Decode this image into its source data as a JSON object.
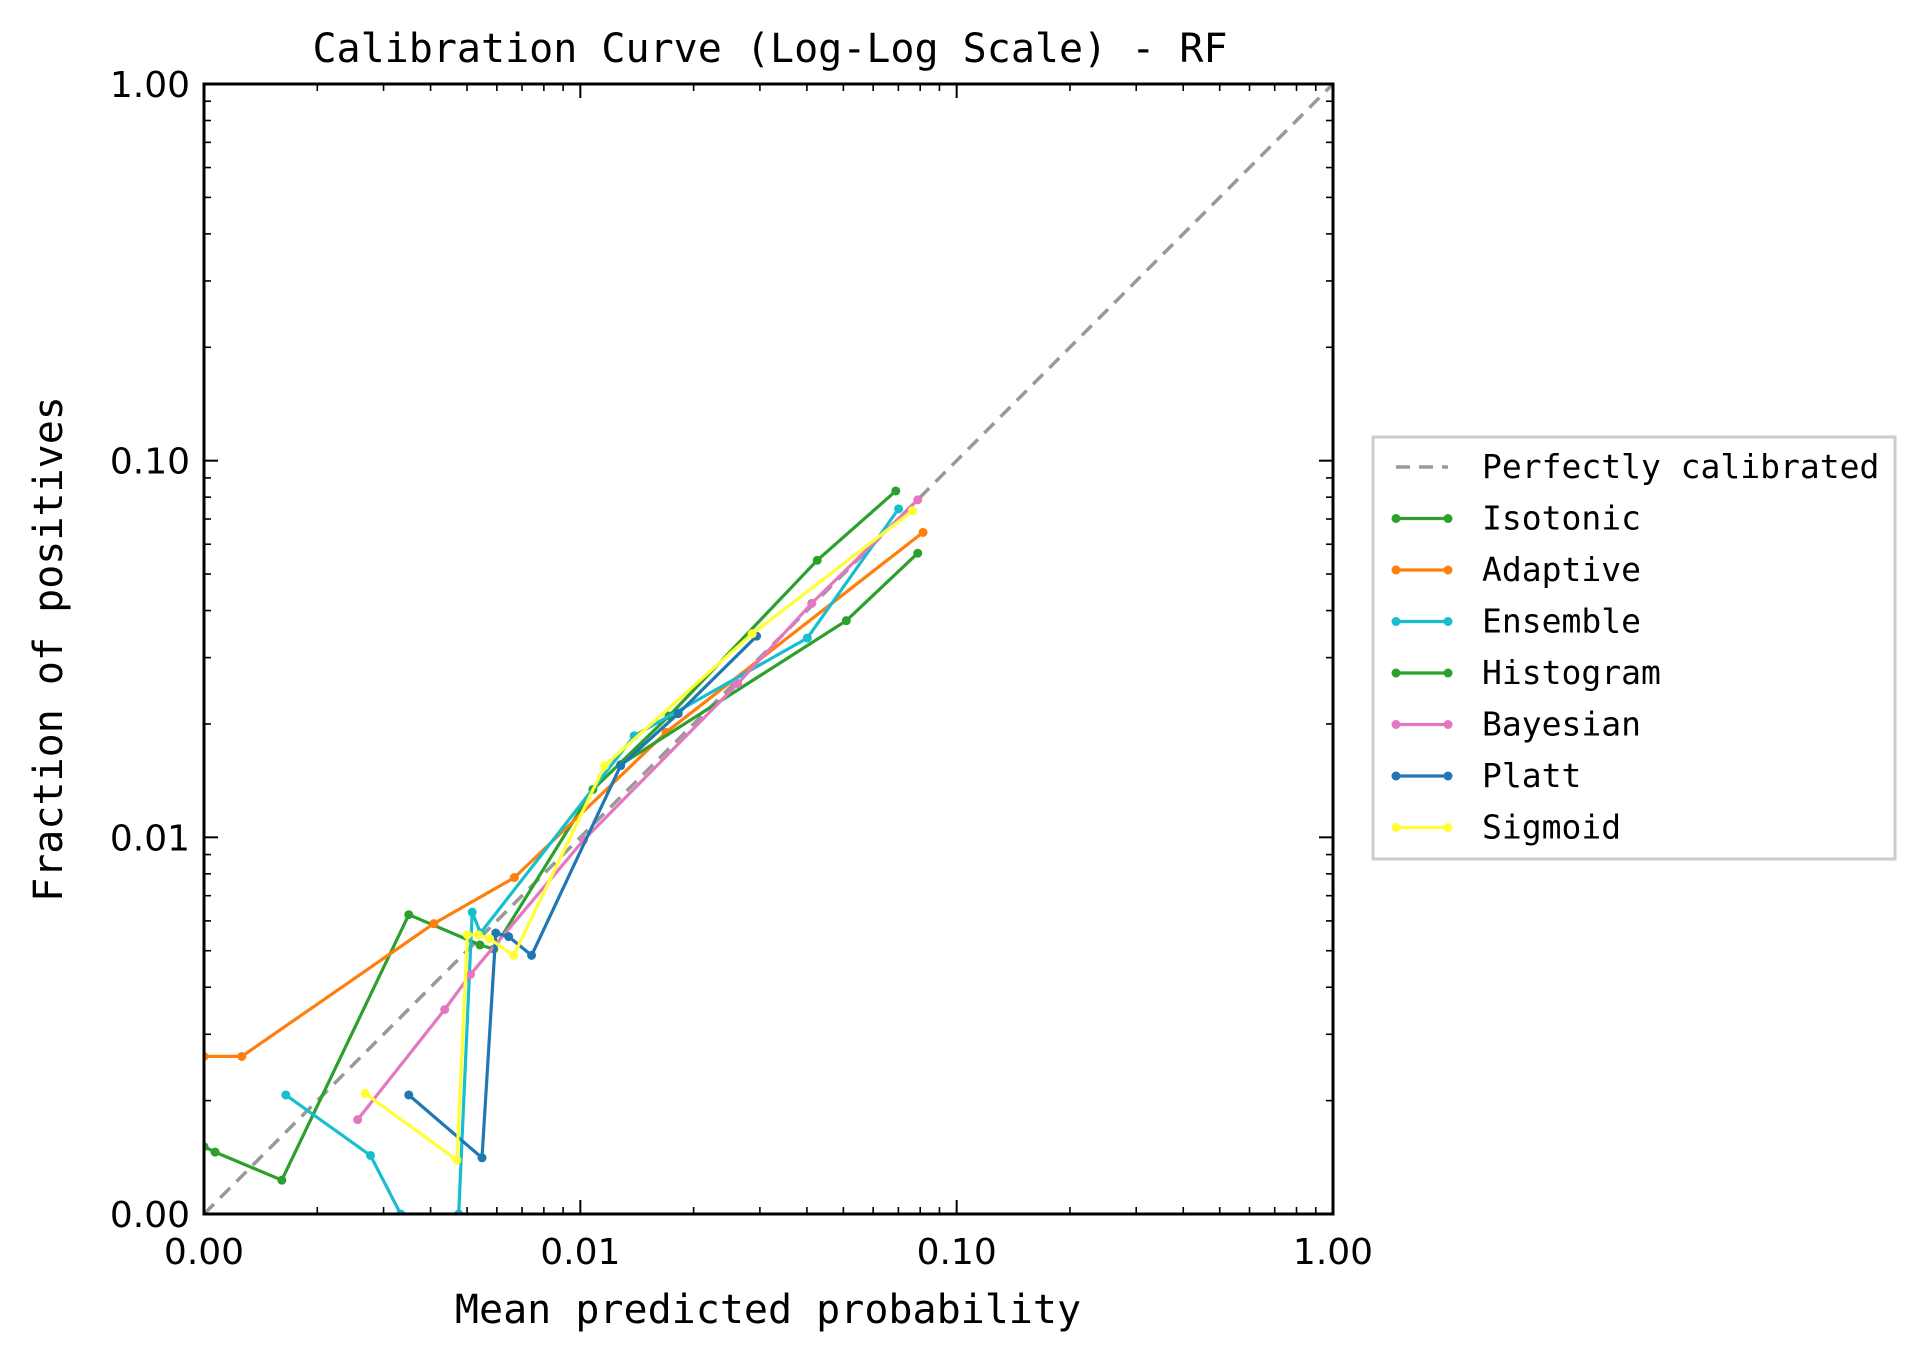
{
  "chart_data": {
    "type": "line",
    "title": "Calibration Curve (Log-Log Scale) - RF",
    "xlabel": "Mean predicted probability",
    "ylabel": "Fraction of positives",
    "xscale": "log",
    "yscale": "log",
    "xlim": [
      0.001,
      1.0
    ],
    "ylim": [
      0.001,
      1.0
    ],
    "xticks": [
      0.001,
      0.01,
      0.1,
      1.0
    ],
    "xtick_labels": [
      "0.00",
      "0.01",
      "0.10",
      "1.00"
    ],
    "yticks": [
      0.001,
      0.01,
      0.1,
      1.0
    ],
    "ytick_labels": [
      "0.00",
      "0.01",
      "0.10",
      "1.00"
    ],
    "grid": false,
    "legend_position": "outside right",
    "reference_line": {
      "name": "Perfectly calibrated",
      "x": [
        0.001,
        1.0
      ],
      "y": [
        0.001,
        1.0
      ],
      "color": "#999999",
      "style": "dashed"
    },
    "series": [
      {
        "name": "Isotonic",
        "color": "#2ca02c",
        "x": [
          0.001,
          0.00107,
          0.00161,
          0.0035,
          0.00541,
          0.00589,
          0.0108,
          0.0172,
          0.0426,
          0.0689
        ],
        "y": [
          0.00151,
          0.00146,
          0.00123,
          0.00623,
          0.00518,
          0.00505,
          0.0134,
          0.021,
          0.0544,
          0.0831
        ]
      },
      {
        "name": "Adaptive",
        "color": "#ff7f0e",
        "x": [
          0.001,
          0.00126,
          0.00408,
          0.00668,
          0.0169,
          0.0814
        ],
        "y": [
          0.00262,
          0.00262,
          0.0059,
          0.00782,
          0.019,
          0.0645
        ]
      },
      {
        "name": "Ensemble",
        "color": "#17becf",
        "x": [
          0.00165,
          0.00277,
          0.00333,
          0.00475,
          0.00516,
          0.00543,
          0.0139,
          0.0401,
          0.0701
        ],
        "y": [
          0.00207,
          0.00143,
          0.001,
          0.001,
          0.00633,
          0.00557,
          0.0186,
          0.0338,
          0.0745
        ]
      },
      {
        "name": "Histogram",
        "color": "#2ca02c",
        "x": [
          0.0128,
          0.0509,
          0.0788
        ],
        "y": [
          0.0156,
          0.0376,
          0.0568
        ]
      },
      {
        "name": "Bayesian",
        "color": "#e377c2",
        "x": [
          0.00256,
          0.00436,
          0.00511,
          0.0102,
          0.0262,
          0.0412,
          0.0788
        ],
        "y": [
          0.00178,
          0.00349,
          0.00433,
          0.00984,
          0.0256,
          0.0418,
          0.0787
        ]
      },
      {
        "name": "Platt",
        "color": "#1f77b4",
        "x": [
          0.0035,
          0.00548,
          0.00596,
          0.00645,
          0.00742,
          0.0128,
          0.0182,
          0.0294
        ],
        "y": [
          0.00207,
          0.00141,
          0.00557,
          0.00545,
          0.00486,
          0.0155,
          0.0213,
          0.0342
        ]
      },
      {
        "name": "Sigmoid",
        "color": "#ffff33",
        "x": [
          0.00268,
          0.0047,
          0.00501,
          0.00536,
          0.00574,
          0.00665,
          0.0116,
          0.0286,
          0.0763
        ],
        "y": [
          0.00209,
          0.00139,
          0.00551,
          0.00551,
          0.00538,
          0.00486,
          0.0155,
          0.0347,
          0.0736
        ]
      }
    ]
  }
}
